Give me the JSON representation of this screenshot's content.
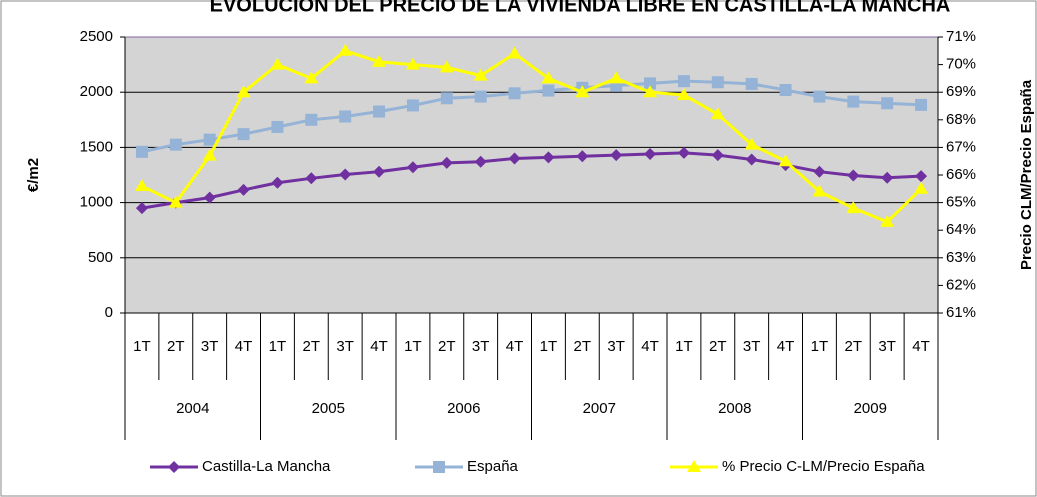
{
  "chart_data": {
    "type": "line",
    "title": "EVOLUCIÓN DEL PRECIO DE LA VIVIENDA LIBRE EN CASTILLA-LA MANCHA",
    "y_label": "€/m2",
    "y2_label": "Precio CLM/Precio España",
    "categories": [
      "1T",
      "2T",
      "3T",
      "4T",
      "1T",
      "2T",
      "3T",
      "4T",
      "1T",
      "2T",
      "3T",
      "4T",
      "1T",
      "2T",
      "3T",
      "4T",
      "1T",
      "2T",
      "3T",
      "4T",
      "1T",
      "2T",
      "3T",
      "4T"
    ],
    "groups": [
      "2004",
      "2005",
      "2006",
      "2007",
      "2008",
      "2009"
    ],
    "series": [
      {
        "name": "Castilla-La Mancha",
        "color": "#7030a0",
        "marker": "diamond",
        "values": [
          950,
          1000,
          1045,
          1115,
          1180,
          1220,
          1255,
          1280,
          1320,
          1360,
          1370,
          1400,
          1410,
          1420,
          1430,
          1440,
          1450,
          1430,
          1390,
          1340,
          1280,
          1245,
          1225,
          1240
        ]
      },
      {
        "name": "España",
        "color": "#95b3d7",
        "marker": "square",
        "values": [
          1460,
          1525,
          1570,
          1620,
          1685,
          1750,
          1780,
          1825,
          1880,
          1945,
          1960,
          1990,
          2015,
          2040,
          2060,
          2080,
          2100,
          2090,
          2075,
          2020,
          1960,
          1915,
          1900,
          1885
        ]
      },
      {
        "name": "% Precio C-LM/Precio España",
        "color": "#ffff00",
        "marker": "triangle",
        "axis": "y2",
        "values": [
          65.6,
          65.0,
          66.7,
          69.0,
          70.0,
          69.5,
          70.5,
          70.1,
          70.0,
          69.9,
          69.6,
          70.4,
          69.5,
          69.0,
          69.5,
          69.0,
          68.9,
          68.2,
          67.1,
          66.5,
          65.4,
          64.8,
          64.3,
          65.5
        ]
      }
    ],
    "ylim": [
      0,
      2500
    ],
    "yticks": [
      0,
      500,
      1000,
      1500,
      2000,
      2500
    ],
    "y2lim": [
      61,
      71
    ],
    "y2ticks": [
      {
        "value": 61,
        "label": "61%"
      },
      {
        "value": 62,
        "label": "62%"
      },
      {
        "value": 63,
        "label": "63%"
      },
      {
        "value": 64,
        "label": "64%"
      },
      {
        "value": 65,
        "label": "65%"
      },
      {
        "value": 66,
        "label": "66%"
      },
      {
        "value": 67,
        "label": "67%"
      },
      {
        "value": 68,
        "label": "68%"
      },
      {
        "value": 69,
        "label": "69%"
      },
      {
        "value": 70,
        "label": "70%"
      },
      {
        "value": 71,
        "label": "71%"
      }
    ],
    "grid": true
  }
}
